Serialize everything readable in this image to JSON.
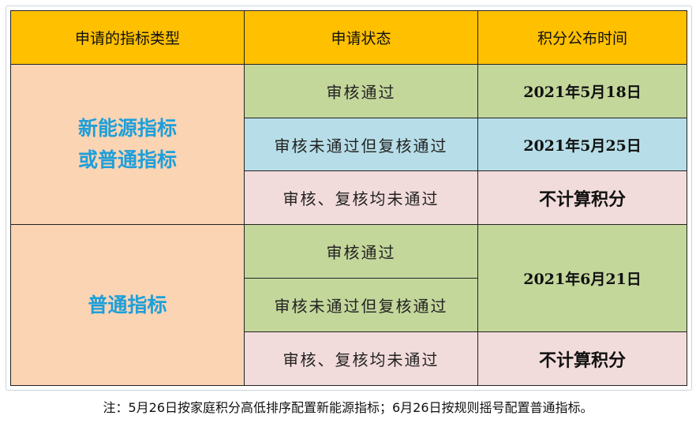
{
  "table": {
    "headers": [
      "申请的指标类型",
      "申请状态",
      "积分公布时间"
    ],
    "groups": [
      {
        "type": "新能源指标\n或普通指标",
        "type_line1": "新能源指标",
        "type_line2": "或普通指标",
        "rows": [
          {
            "status": "审核通过",
            "time": "2021年5月18日"
          },
          {
            "status": "审核未通过但复核通过",
            "time": "2021年5月25日"
          },
          {
            "status": "审核、复核均未通过",
            "time": "不计算积分"
          }
        ]
      },
      {
        "type": "普通指标",
        "rows": [
          {
            "status": "审核通过"
          },
          {
            "status": "审核未通过但复核通过"
          },
          {
            "status": "审核、复核均未通过",
            "time": "不计算积分"
          }
        ],
        "shared_time": "2021年6月21日"
      }
    ]
  },
  "note": "注：5月26日按家庭积分高低排序配置新能源指标；6月26日按规则摇号配置普通指标。",
  "colors": {
    "header": "#FFC000",
    "type_cell": "#FBD4B4",
    "passed": "#C4D79B",
    "review_passed": "#B7DEE8",
    "failed": "#F2DCDB",
    "type_text": "#1E9FD9"
  }
}
